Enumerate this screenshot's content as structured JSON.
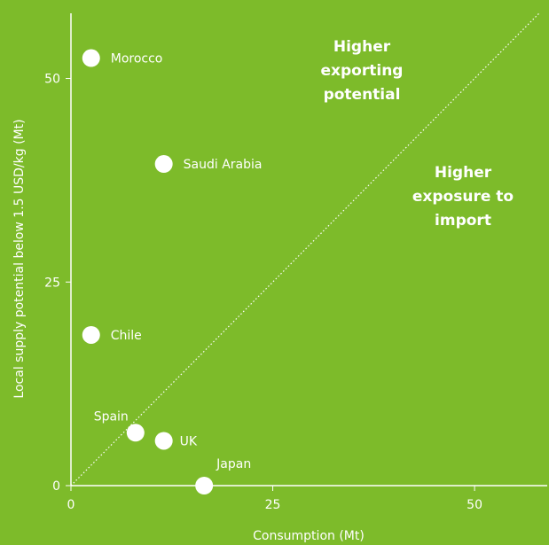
{
  "colors": {
    "background": "#7dbb2a",
    "foreground": "#ffffff"
  },
  "chart_data": {
    "type": "scatter",
    "xlabel": "Consumption (Mt)",
    "ylabel": "Local supply potential below 1.5 USD/kg (Mt)",
    "xlim": [
      0,
      59
    ],
    "ylim": [
      0,
      58
    ],
    "x_ticks": [
      0,
      25,
      50
    ],
    "y_ticks": [
      0,
      25,
      50
    ],
    "grid": false,
    "reference_line": "y = x (dotted)",
    "points": [
      {
        "label": "Morocco",
        "x": 2.5,
        "y": 52.5
      },
      {
        "label": "Saudi Arabia",
        "x": 11.5,
        "y": 39.5
      },
      {
        "label": "Chile",
        "x": 2.5,
        "y": 18.5
      },
      {
        "label": "Spain",
        "x": 8,
        "y": 6.5
      },
      {
        "label": "UK",
        "x": 11.5,
        "y": 5.5
      },
      {
        "label": "Japan",
        "x": 16.5,
        "y": 0
      }
    ],
    "annotations": [
      {
        "lines": [
          "Higher",
          "exporting",
          "potential"
        ]
      },
      {
        "lines": [
          "Higher",
          "exposure to",
          "import"
        ]
      }
    ]
  }
}
